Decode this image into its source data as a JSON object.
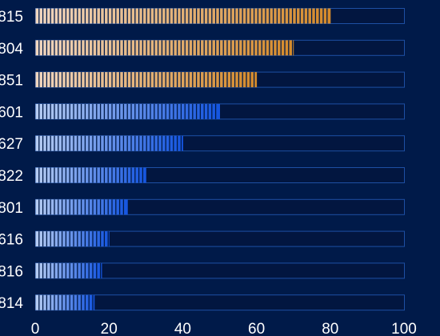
{
  "chart_data": {
    "type": "bar",
    "orientation": "horizontal",
    "categories": [
      "815",
      "804",
      "851",
      "601",
      "627",
      "822",
      "801",
      "616",
      "816",
      "814"
    ],
    "values": [
      80,
      70,
      60,
      50,
      40,
      30,
      25,
      20,
      18,
      16
    ],
    "xlim": [
      0,
      100
    ],
    "x_ticks": [
      "0",
      "20",
      "40",
      "60",
      "80",
      "100"
    ],
    "grid": false,
    "legend": "none",
    "title": "",
    "xlabel": "",
    "ylabel": "",
    "colors": {
      "background": "#001a49",
      "track_fill": "#021640",
      "track_border": "#1d4fa3",
      "top_bar_start": "#f0d6c0",
      "top_bar_end": "#d58a2a",
      "other_bar_start": "#b7cdf2",
      "other_bar_end": "#1455e0",
      "segment_gap": "#001a49",
      "text": "#ffffff"
    },
    "highlighted_top_count": 3
  }
}
